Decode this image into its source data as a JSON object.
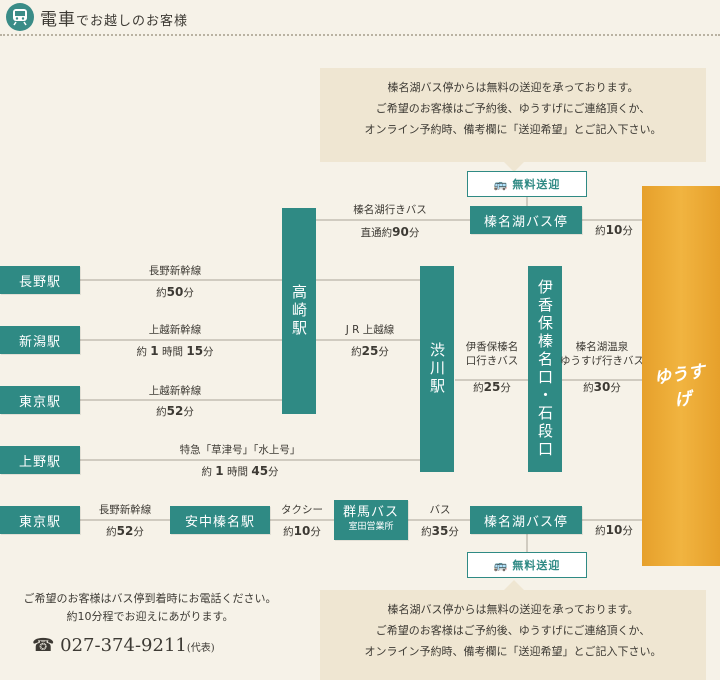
{
  "header": {
    "title_a": "電車",
    "title_b": "でお越しのお客様",
    "icon": "train-icon"
  },
  "note_top": [
    "榛名湖バス停からは無料の送迎を承っております。",
    "ご希望のお客様はご予約後、ゆうすげにご連絡頂くか、",
    "オンライン予約時、備考欄に「送迎希望」とご記入下さい。"
  ],
  "note_bottom": [
    "榛名湖バス停からは無料の送迎を承っております。",
    "ご希望のお客様はご予約後、ゆうすげにご連絡頂くか、",
    "オンライン予約時、備考欄に「送迎希望」とご記入下さい。"
  ],
  "free_shuttle": "無料送迎",
  "stations": {
    "nagano": "長野駅",
    "niigata": "新潟駅",
    "tokyo1": "東京駅",
    "ueno": "上野駅",
    "tokyo2": "東京駅",
    "takasaki": "高崎駅",
    "shibukawa": "渋川駅",
    "ikaho": "伊香保榛名口・石段口",
    "harunako_top": "榛名湖バス停",
    "harunako_bottom": "榛名湖バス停",
    "annaka": "安中榛名駅",
    "gunmabus": "群馬バス",
    "gunmabus_sub": "室田営業所"
  },
  "routes": {
    "r1_name": "長野新幹線",
    "r1_time": "約",
    "r1_num": "50",
    "r1_unit": "分",
    "r2_name": "上越新幹線",
    "r2_time": "約",
    "r2_num": "1",
    "r2_mid": "時間",
    "r2_num2": "15",
    "r2_unit": "分",
    "r3_name": "上越新幹線",
    "r3_time": "約",
    "r3_num": "52",
    "r3_unit": "分",
    "r4_name": "特急「草津号」「水上号」",
    "r4_time": "約",
    "r4_num": "1",
    "r4_mid": "時間",
    "r4_num2": "45",
    "r4_unit": "分",
    "r5_name": "長野新幹線",
    "r5_time": "約",
    "r5_num": "52",
    "r5_unit": "分",
    "bus_top_name": "榛名湖行きバス",
    "bus_top_time": "直通約",
    "bus_top_num": "90",
    "bus_top_unit": "分",
    "jr_name": "J R 上越線",
    "jr_time": "約",
    "jr_num": "25",
    "jr_unit": "分",
    "ikaho_name1": "伊香保榛名",
    "ikaho_name2": "口行きバス",
    "ikaho_time": "約",
    "ikaho_num": "25",
    "ikaho_unit": "分",
    "yusuge_name1": "榛名湖温泉",
    "yusuge_name2": "ゆうすげ行きバス",
    "yusuge_time": "約",
    "yusuge_num": "30",
    "yusuge_unit": "分",
    "walk_top_time": "約",
    "walk_top_num": "10",
    "walk_top_unit": "分",
    "taxi_name": "タクシー",
    "taxi_time": "約",
    "taxi_num": "10",
    "taxi_unit": "分",
    "bus_name": "バス",
    "bus_time": "約",
    "bus_num": "35",
    "bus_unit": "分",
    "walk_bottom_time": "約",
    "walk_bottom_num": "10",
    "walk_bottom_unit": "分"
  },
  "destination_logo": "ゆうすげ",
  "call": {
    "line1": "ご希望のお客様はバス停到着時にお電話ください。",
    "line2": "約10分程でお迎えにあがります。",
    "phone": "027-374-9211",
    "phone_note": "(代表)"
  },
  "colors": {
    "teal": "#2f8a84",
    "orange": "#f1b440",
    "background": "#f6f2e8"
  }
}
